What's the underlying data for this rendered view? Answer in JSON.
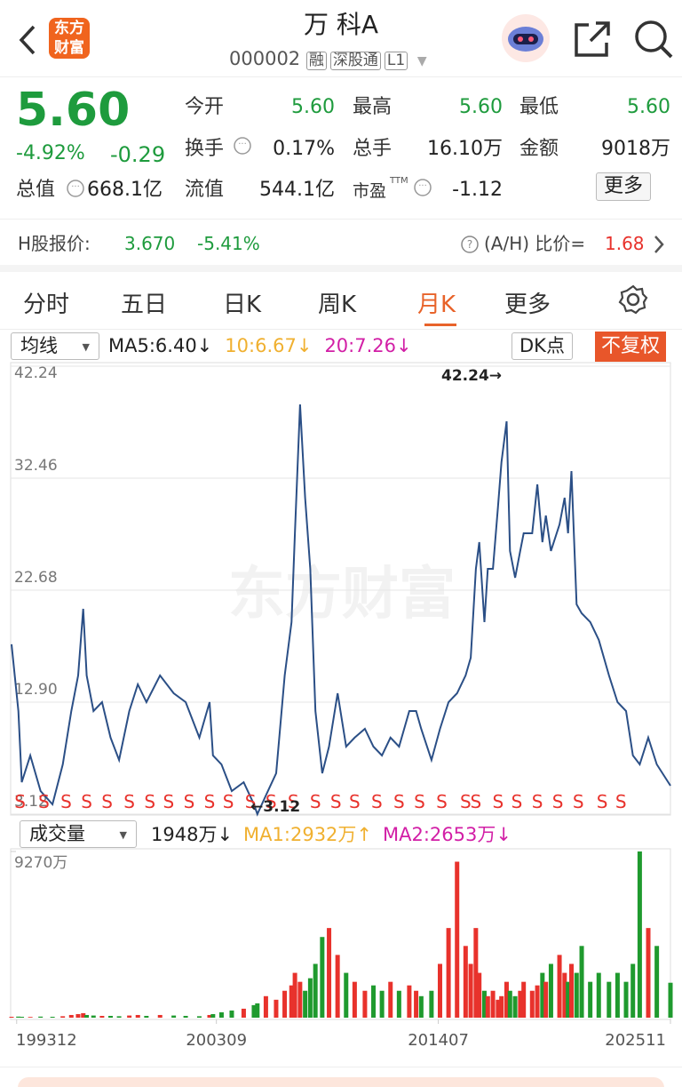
{
  "header": {
    "logo": "东方财富",
    "title": "万 科A",
    "code": "000002",
    "tags": [
      "融",
      "深股通",
      "L1"
    ]
  },
  "quote": {
    "price": "5.60",
    "change_pct": "-4.92%",
    "change": "-0.29",
    "total_value": {
      "label": "总值",
      "value": "668.1亿"
    },
    "stats": [
      [
        {
          "label": "今开",
          "value": "5.60"
        },
        {
          "label": "最高",
          "value": "5.60"
        },
        {
          "label": "最低",
          "value": "5.60"
        }
      ],
      [
        {
          "label": "换手",
          "value": "0.17%"
        },
        {
          "label": "总手",
          "value": "16.10万"
        },
        {
          "label": "金额",
          "value": "9018万"
        }
      ],
      [
        {
          "label": "流值",
          "value": "544.1亿"
        },
        {
          "label": "市盈",
          "sup": "TTM",
          "value": "-1.12"
        }
      ]
    ],
    "more_button": "更多"
  },
  "h_share": {
    "label": "H股报价:",
    "price": "3.670",
    "change_pct": "-5.41%",
    "ratio_label": "(A/H) 比价=",
    "ratio": "1.68"
  },
  "tabs": {
    "items": [
      "分时",
      "五日",
      "日K",
      "周K",
      "月K",
      "更多"
    ],
    "active": 4
  },
  "indicators": {
    "selector": "均线",
    "ma": [
      {
        "text": "MA5:6.40↓",
        "color": "#222222"
      },
      {
        "text": "10:6.67↓",
        "color": "#f0b030"
      },
      {
        "text": "20:7.26↓",
        "color": "#d21fa6"
      }
    ],
    "dk": "DK点",
    "adjust": "不复权"
  },
  "volume_legend": {
    "selector": "成交量",
    "items": [
      {
        "text": "1948万↓",
        "color": "#222222"
      },
      {
        "text": "MA1:2932万↑",
        "color": "#f0b030"
      },
      {
        "text": "MA2:2653万↓",
        "color": "#d21fa6"
      }
    ]
  },
  "watermark": "东方财富",
  "chart_data": [
    {
      "type": "line",
      "color": "#2b4f86",
      "grid": true,
      "xlim": [
        "199309",
        "202511"
      ],
      "ylim": [
        3.12,
        42.24
      ],
      "yticks": [
        42.24,
        32.46,
        22.68,
        {
          "value": 12.9,
          "label": "12.90"
        },
        3.12
      ],
      "max_label": "42.24→",
      "min_label": "←3.12",
      "x": [
        "199309",
        "199401",
        "199403",
        "199408",
        "199502",
        "199509",
        "199603",
        "199608",
        "199612",
        "199703",
        "199705",
        "199709",
        "199802",
        "199807",
        "199812",
        "199906",
        "199911",
        "200004",
        "200012",
        "200108",
        "200203",
        "200211",
        "200305",
        "200307",
        "200312",
        "200406",
        "200501",
        "200507",
        "200509",
        "200602",
        "200608",
        "200701",
        "200705",
        "200707",
        "200710",
        "200801",
        "200804",
        "200807",
        "200811",
        "200903",
        "200908",
        "201001",
        "201006",
        "201012",
        "201105",
        "201110",
        "201203",
        "201208",
        "201302",
        "201306",
        "201309",
        "201403",
        "201408",
        "201501",
        "201506",
        "201511",
        "201602",
        "201605",
        "201607",
        "201610",
        "201612",
        "201703",
        "201706",
        "201708",
        "201711",
        "201801",
        "201804",
        "201807",
        "201809",
        "201902",
        "201905",
        "201908",
        "201910",
        "202001",
        "202006",
        "202009",
        "202011",
        "202101",
        "202104",
        "202107",
        "202112",
        "202205",
        "202211",
        "202304",
        "202309",
        "202401",
        "202405",
        "202410",
        "202503",
        "202511"
      ],
      "values": [
        17.95,
        12.12,
        5.91,
        8.24,
        5.14,
        3.97,
        7.47,
        12.12,
        15.23,
        21.05,
        15.23,
        12.12,
        12.9,
        9.8,
        7.85,
        12.12,
        14.45,
        12.9,
        15.23,
        13.68,
        12.9,
        9.8,
        12.9,
        8.24,
        7.47,
        5.14,
        5.91,
        3.97,
        3.12,
        4.75,
        6.69,
        15.23,
        19.89,
        27.65,
        38.9,
        30.75,
        24.54,
        12.12,
        6.69,
        9.02,
        13.68,
        9.02,
        9.8,
        10.57,
        9.02,
        8.24,
        9.8,
        9.02,
        12.12,
        12.12,
        10.57,
        7.85,
        10.57,
        12.9,
        13.68,
        15.23,
        16.78,
        24.54,
        26.87,
        19.89,
        24.54,
        24.54,
        29.98,
        33.86,
        37.43,
        26.1,
        23.77,
        26.1,
        27.65,
        27.65,
        31.92,
        26.87,
        29.2,
        26.1,
        28.42,
        30.75,
        27.65,
        33.08,
        21.44,
        20.66,
        19.89,
        18.33,
        15.23,
        12.9,
        12.12,
        8.24,
        7.47,
        9.8,
        7.47,
        5.6
      ],
      "signals": {
        "label": "S",
        "color": "#e8322c",
        "x": [
          "199402",
          "199504",
          "199605",
          "199705",
          "199805",
          "199906",
          "200006",
          "200105",
          "200205",
          "200305",
          "200404",
          "200505",
          "200605",
          "200706",
          "200807",
          "200907",
          "201006",
          "201107",
          "201208",
          "201308",
          "201409",
          "201511",
          "201605",
          "201706",
          "201805",
          "201905",
          "202005",
          "202105",
          "202207",
          "202306"
        ]
      }
    },
    {
      "type": "bar",
      "up_color": "#e8322c",
      "down_color": "#1f9a2e",
      "ylim": [
        0,
        9270
      ],
      "yticks": [
        {
          "value": 9270,
          "label": "9270万"
        }
      ],
      "xticks": [
        "199312",
        "200309",
        "201407",
        "202511"
      ],
      "x": [
        "199309",
        "199401",
        "199403",
        "199408",
        "199502",
        "199509",
        "199603",
        "199608",
        "199612",
        "199703",
        "199705",
        "199709",
        "199802",
        "199807",
        "199812",
        "199906",
        "199911",
        "200004",
        "200012",
        "200108",
        "200203",
        "200211",
        "200305",
        "200307",
        "200312",
        "200406",
        "200501",
        "200507",
        "200509",
        "200602",
        "200608",
        "200701",
        "200705",
        "200707",
        "200710",
        "200801",
        "200804",
        "200807",
        "200811",
        "200903",
        "200908",
        "201001",
        "201006",
        "201012",
        "201105",
        "201110",
        "201203",
        "201208",
        "201302",
        "201306",
        "201309",
        "201403",
        "201408",
        "201501",
        "201506",
        "201511",
        "201602",
        "201605",
        "201607",
        "201610",
        "201612",
        "201703",
        "201706",
        "201708",
        "201711",
        "201801",
        "201804",
        "201807",
        "201809",
        "201902",
        "201905",
        "201908",
        "201910",
        "202001",
        "202006",
        "202009",
        "202011",
        "202101",
        "202104",
        "202107",
        "202112",
        "202205",
        "202211",
        "202304",
        "202309",
        "202401",
        "202405",
        "202410",
        "202503",
        "202511"
      ],
      "values": [
        50,
        60,
        50,
        40,
        60,
        50,
        80,
        150,
        200,
        250,
        150,
        120,
        100,
        100,
        80,
        120,
        150,
        100,
        150,
        120,
        100,
        80,
        150,
        200,
        300,
        400,
        500,
        700,
        800,
        1200,
        1000,
        1500,
        1800,
        2500,
        2000,
        1500,
        2200,
        3000,
        4500,
        5000,
        3500,
        2500,
        2000,
        1500,
        1800,
        1500,
        2000,
        1500,
        1800,
        1500,
        1200,
        1500,
        3000,
        5000,
        8700,
        4000,
        3000,
        5000,
        2500,
        1500,
        1200,
        1500,
        1000,
        1200,
        2000,
        1500,
        1200,
        1500,
        2000,
        1500,
        1800,
        2500,
        2000,
        3000,
        3500,
        2500,
        2000,
        3000,
        2500,
        4000,
        2000,
        2500,
        2000,
        2500,
        2000,
        3000,
        9270,
        5000,
        4000,
        1948
      ]
    }
  ]
}
